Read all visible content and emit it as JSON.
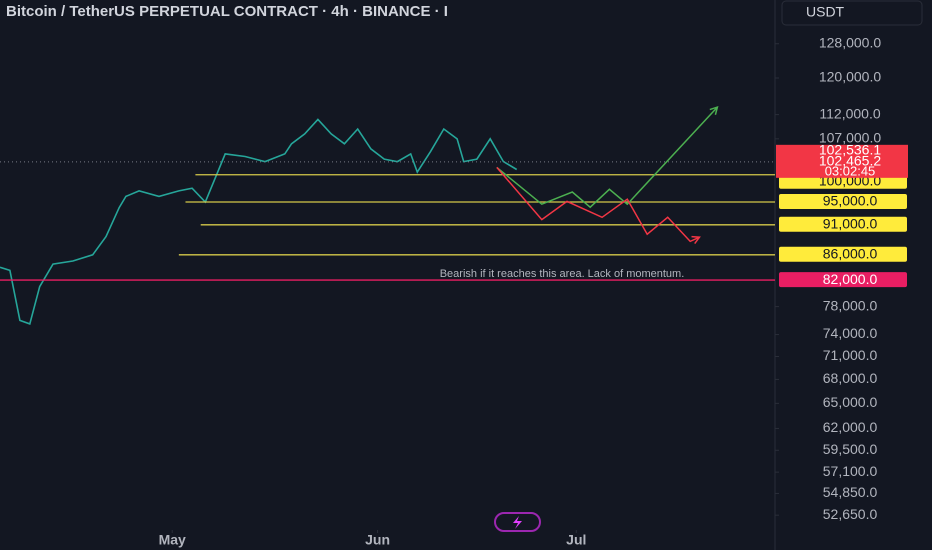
{
  "chart_data": {
    "type": "line",
    "title": "Bitcoin / TetherUS PERPETUAL CONTRACT · 4h · BINANCE · I",
    "currency": "USDT",
    "log_scale": true,
    "color": "#26a69a",
    "x": [
      0,
      1.5,
      3,
      4.5,
      6,
      8,
      11,
      14,
      16,
      18,
      19,
      21,
      24,
      27,
      29,
      31,
      34,
      37,
      40,
      43,
      44,
      46,
      48,
      50,
      52,
      54,
      56,
      58,
      60,
      62,
      63,
      65,
      67,
      69,
      70,
      72,
      74,
      76,
      78
    ],
    "values": [
      84000,
      83500,
      76000,
      75500,
      81000,
      84500,
      85000,
      86000,
      89000,
      94000,
      96000,
      97000,
      96000,
      97000,
      97500,
      95000,
      104000,
      103500,
      102500,
      104000,
      106000,
      108000,
      111000,
      108000,
      106000,
      109000,
      105000,
      103000,
      102500,
      104000,
      100500,
      104500,
      109000,
      107000,
      102500,
      103000,
      107000,
      102500,
      101000
    ],
    "xlim": [
      0,
      117
    ],
    "xticks": [
      {
        "value": 26,
        "label": "May"
      },
      {
        "value": 57,
        "label": "Jun"
      },
      {
        "value": 87,
        "label": "Jul"
      }
    ],
    "ylim": [
      51200,
      139000
    ],
    "yticks": [
      {
        "value": 128000,
        "label": "128,000.0"
      },
      {
        "value": 120000,
        "label": "120,000.0"
      },
      {
        "value": 112000,
        "label": "112,000.0"
      },
      {
        "value": 107000,
        "label": "107,000.0"
      },
      {
        "value": 78000,
        "label": "78,000.0"
      },
      {
        "value": 74000,
        "label": "74,000.0"
      },
      {
        "value": 71000,
        "label": "71,000.0"
      },
      {
        "value": 68000,
        "label": "68,000.0"
      },
      {
        "value": 65000,
        "label": "65,000.0"
      },
      {
        "value": 62000,
        "label": "62,000.0"
      },
      {
        "value": 59500,
        "label": "59,500.0"
      },
      {
        "value": 57100,
        "label": "57,100.0"
      },
      {
        "value": 54850,
        "label": "54,850.0"
      },
      {
        "value": 52650,
        "label": "52,650.0"
      }
    ],
    "levels": [
      {
        "value": 100000,
        "label": "100,000.0",
        "color": "#d4c84a",
        "x_start": 29.5
      },
      {
        "value": 95000,
        "label": "95,000.0",
        "color": "#d4c84a",
        "x_start": 28
      },
      {
        "value": 91000,
        "label": "91,000.0",
        "color": "#d4c84a",
        "x_start": 30.3
      },
      {
        "value": 86000,
        "label": "86,000.0",
        "color": "#d4c84a",
        "x_start": 27
      },
      {
        "value": 82000,
        "label": "82,000.0",
        "color": "#e91e63",
        "x_start": 0
      }
    ],
    "price_labels": [
      {
        "value": 102536.1,
        "label": "102,536.1"
      },
      {
        "value": 102465.2,
        "label": "102,465.2"
      }
    ],
    "countdown": "03:02:45",
    "annotation": "Bearish if it reaches this area. Lack of momentum.",
    "projections": [
      {
        "color": "#4caf50",
        "x": [
          75,
          81.8,
          86.4,
          89.1,
          92,
          94.7,
          108.3
        ],
        "values": [
          101400,
          94600,
          96800,
          94060,
          97300,
          94600,
          113600
        ]
      },
      {
        "color": "#f23645",
        "x": [
          75,
          81.8,
          85.6,
          90.9,
          94.7,
          97.7,
          100.8,
          104.2,
          105.6
        ],
        "values": [
          101400,
          91900,
          95100,
          92300,
          95500,
          89400,
          92300,
          88200,
          88900
        ]
      }
    ]
  }
}
